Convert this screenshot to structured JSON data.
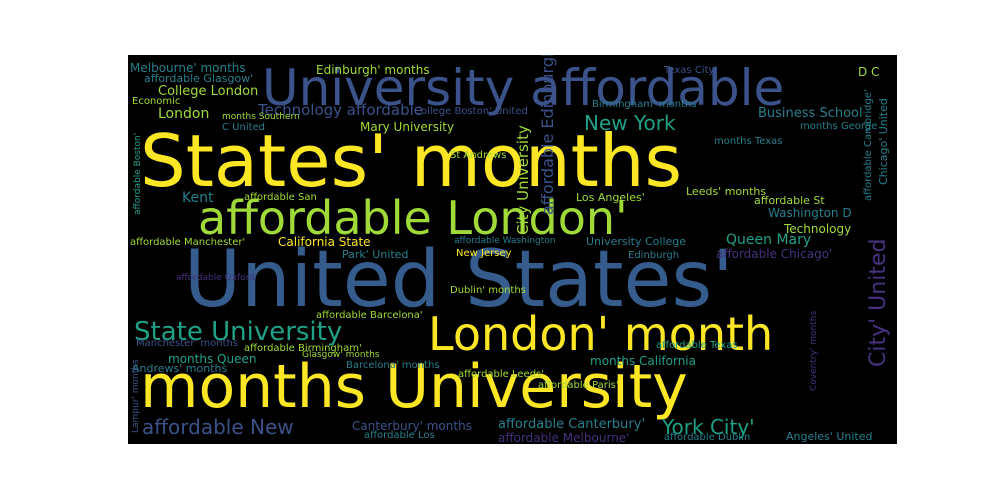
{
  "palette": {
    "purple": "#46327e",
    "indigo": "#3b528b",
    "blue": "#365c8d",
    "teal": "#277f8e",
    "green": "#1fa187",
    "lime": "#a0da39",
    "yellow": "#fde725",
    "background": "#000000"
  },
  "words": [
    {
      "text": "United States'",
      "color": "blue"
    },
    {
      "text": "States' months",
      "color": "yellow"
    },
    {
      "text": "months University",
      "color": "yellow"
    },
    {
      "text": "University affordable",
      "color": "indigo"
    },
    {
      "text": "affordable London'",
      "color": "lime"
    },
    {
      "text": "London' month",
      "color": "yellow"
    },
    {
      "text": "State University",
      "color": "green"
    },
    {
      "text": "City' United",
      "color": "purple"
    },
    {
      "text": "New York",
      "color": "green"
    },
    {
      "text": "York City'",
      "color": "green"
    },
    {
      "text": "affordable New",
      "color": "indigo"
    },
    {
      "text": "affordable Edinburgh",
      "color": "indigo"
    },
    {
      "text": "City University",
      "color": "lime"
    },
    {
      "text": "Technology affordable",
      "color": "indigo"
    },
    {
      "text": "College London",
      "color": "lime"
    },
    {
      "text": "Edinburgh' months",
      "color": "lime"
    },
    {
      "text": "Melbourne' months",
      "color": "teal"
    },
    {
      "text": "affordable Glasgow'",
      "color": "teal"
    },
    {
      "text": "Mary University",
      "color": "lime"
    },
    {
      "text": "Business School",
      "color": "teal"
    },
    {
      "text": "London",
      "color": "lime"
    },
    {
      "text": "Kent",
      "color": "teal"
    },
    {
      "text": "affordable San",
      "color": "lime"
    },
    {
      "text": "California State",
      "color": "yellow"
    },
    {
      "text": "University College",
      "color": "teal"
    },
    {
      "text": "Queen Mary",
      "color": "green"
    },
    {
      "text": "Washington D",
      "color": "teal"
    },
    {
      "text": "Technology",
      "color": "lime"
    },
    {
      "text": "affordable Chicago'",
      "color": "purple"
    },
    {
      "text": "affordable Manchester'",
      "color": "lime"
    },
    {
      "text": "Park' United",
      "color": "teal"
    },
    {
      "text": "Los Angeles'",
      "color": "lime"
    },
    {
      "text": "Leeds' months",
      "color": "lime"
    },
    {
      "text": "affordable St",
      "color": "lime"
    },
    {
      "text": "months Queen",
      "color": "green"
    },
    {
      "text": "months California",
      "color": "green"
    },
    {
      "text": "Andrews' months",
      "color": "teal"
    },
    {
      "text": "Barcelona' months",
      "color": "teal"
    },
    {
      "text": "Canterbury' months",
      "color": "indigo"
    },
    {
      "text": "affordable Canterbury'",
      "color": "teal"
    },
    {
      "text": "affordable Melbourne'",
      "color": "purple"
    },
    {
      "text": "affordable Dublin",
      "color": "teal"
    },
    {
      "text": "Angeles' United",
      "color": "teal"
    },
    {
      "text": "affordable Barcelona'",
      "color": "lime"
    },
    {
      "text": "affordable Birmingham'",
      "color": "lime"
    },
    {
      "text": "affordable Leeds'",
      "color": "lime"
    },
    {
      "text": "affordable Texas",
      "color": "green"
    },
    {
      "text": "affordable Paris'",
      "color": "lime"
    },
    {
      "text": "Dublin' months",
      "color": "lime"
    },
    {
      "text": "New Jersey",
      "color": "yellow"
    },
    {
      "text": "Edinburgh",
      "color": "teal"
    },
    {
      "text": "Texas City'",
      "color": "indigo"
    },
    {
      "text": "D C",
      "color": "lime"
    },
    {
      "text": "Chicago' United",
      "color": "teal"
    },
    {
      "text": "affordable Cambridge'",
      "color": "teal"
    },
    {
      "text": "Economic",
      "color": "lime"
    },
    {
      "text": "C United",
      "color": "teal"
    },
    {
      "text": "months Texas",
      "color": "teal"
    },
    {
      "text": "months George",
      "color": "teal"
    },
    {
      "text": "Birmingham' months",
      "color": "teal"
    },
    {
      "text": "Manchester' months",
      "color": "indigo"
    },
    {
      "text": "Glasgow' months",
      "color": "lime"
    },
    {
      "text": "affordable Oxford'",
      "color": "purple"
    },
    {
      "text": "affordable Los",
      "color": "teal"
    },
    {
      "text": "affordable Boston'",
      "color": "green"
    },
    {
      "text": "St Andrews",
      "color": "lime"
    },
    {
      "text": "affordable Washington",
      "color": "teal"
    },
    {
      "text": "months Southern",
      "color": "lime"
    },
    {
      "text": "College Boston' United",
      "color": "indigo"
    },
    {
      "text": "Lampur' months",
      "color": "indigo"
    },
    {
      "text": "Coventry' months",
      "color": "purple"
    }
  ]
}
